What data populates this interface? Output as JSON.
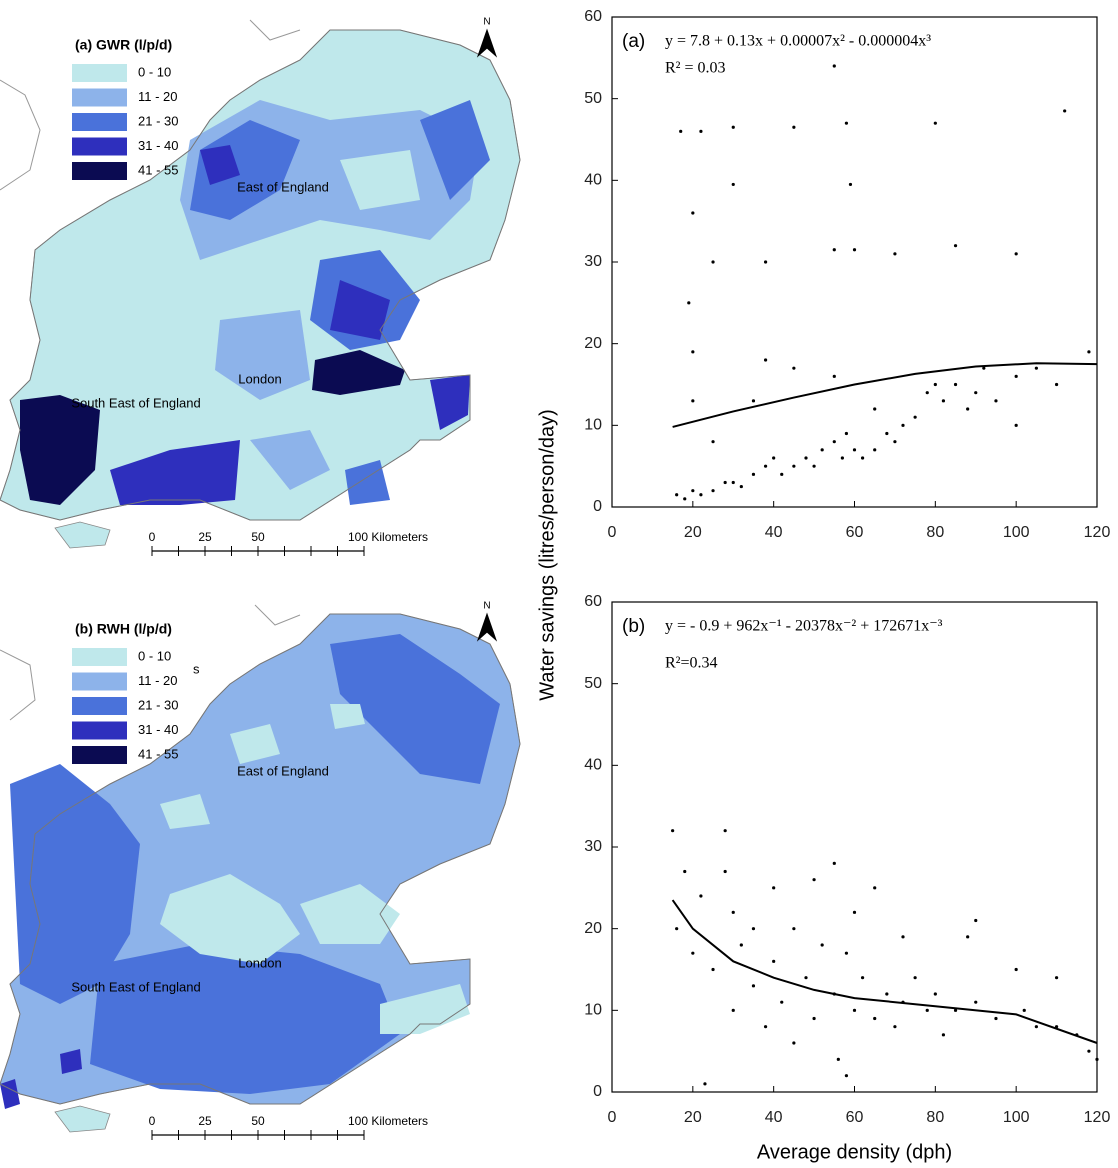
{
  "maps": [
    {
      "title": "(a) GWR (l/p/d)",
      "legend": [
        {
          "label": "0 - 10",
          "color": "#bfe8eb"
        },
        {
          "label": "11 - 20",
          "color": "#8db3ea"
        },
        {
          "label": "21 - 30",
          "color": "#4a72da"
        },
        {
          "label": "31 - 40",
          "color": "#2e2fbd"
        },
        {
          "label": "41 - 55",
          "color": "#0b0b52"
        }
      ],
      "regions": [
        "East of England",
        "London",
        "South East of England"
      ],
      "scale": [
        "0",
        "25",
        "50",
        "100 Kilometers"
      ],
      "north": "N"
    },
    {
      "title": "(b) RWH (l/p/d)",
      "legend": [
        {
          "label": "0 - 10",
          "color": "#bfe8eb"
        },
        {
          "label": "11 - 20",
          "color": "#8db3ea"
        },
        {
          "label": "21 - 30",
          "color": "#4a72da"
        },
        {
          "label": "31 - 40",
          "color": "#2e2fbd"
        },
        {
          "label": "41 - 55",
          "color": "#0b0b52"
        }
      ],
      "regions": [
        "East of England",
        "London",
        "South East of England"
      ],
      "scale": [
        "0",
        "25",
        "50",
        "100 Kilometers"
      ],
      "north": "N",
      "extra": "s"
    }
  ],
  "chart_data": [
    {
      "type": "scatter",
      "annotation": "(a)",
      "equation": "y = 7.8 + 0.13x + 0.00007x² - 0.000004x³",
      "r2": "R² = 0.03",
      "ylabel": "Water savings (litres/person/day)",
      "color": "#000000",
      "x": [
        16,
        18,
        20,
        22,
        25,
        28,
        30,
        32,
        35,
        38,
        40,
        42,
        45,
        48,
        50,
        52,
        55,
        57,
        58,
        60,
        62,
        65,
        68,
        70,
        72,
        75,
        78,
        80,
        82,
        85,
        88,
        90,
        95,
        100,
        105,
        110,
        118,
        19,
        20,
        17,
        22,
        30,
        45,
        58,
        80,
        112,
        30,
        59,
        20,
        25,
        38,
        55,
        60,
        70,
        85,
        38,
        45,
        55,
        20,
        25,
        35,
        65,
        100,
        55,
        92,
        100
      ],
      "y": [
        1.5,
        1,
        2,
        1.5,
        2,
        3,
        3,
        2.5,
        4,
        5,
        6,
        4,
        5,
        6,
        5,
        7,
        8,
        6,
        9,
        7,
        6,
        7,
        9,
        8,
        10,
        11,
        14,
        15,
        13,
        15,
        12,
        14,
        13,
        16,
        17,
        15,
        19,
        25,
        13,
        46,
        46,
        46.5,
        46.5,
        47,
        47,
        48.5,
        39.5,
        39.5,
        36,
        30,
        30,
        31.5,
        31.5,
        31,
        32,
        18,
        17,
        16,
        19,
        8,
        13,
        12,
        31,
        54,
        17,
        10
      ],
      "fit": {
        "x": [
          15,
          30,
          45,
          60,
          75,
          90,
          105,
          120
        ],
        "y": [
          9.8,
          11.7,
          13.4,
          15.0,
          16.3,
          17.2,
          17.6,
          17.5
        ]
      },
      "xlim": [
        0,
        120
      ],
      "xticks": [
        0,
        20,
        40,
        60,
        80,
        100,
        120
      ],
      "ylim": [
        0,
        60
      ],
      "yticks": [
        0,
        10,
        20,
        30,
        40,
        50,
        60
      ]
    },
    {
      "type": "scatter",
      "annotation": "(b)",
      "equation": "y = - 0.9 + 962x⁻¹ - 20378x⁻² + 172671x⁻³",
      "r2": "R²=0.34",
      "xlabel": "Average density (dph)",
      "color": "#000000",
      "x": [
        15,
        16,
        18,
        20,
        22,
        25,
        28,
        30,
        30,
        32,
        35,
        38,
        40,
        42,
        45,
        45,
        48,
        50,
        52,
        55,
        56,
        58,
        58,
        60,
        62,
        65,
        68,
        70,
        72,
        75,
        78,
        80,
        82,
        85,
        88,
        90,
        95,
        100,
        102,
        105,
        110,
        115,
        118,
        120,
        23,
        60,
        65,
        72,
        50,
        35,
        28,
        40,
        55,
        90,
        110
      ],
      "y": [
        32,
        20,
        27,
        17,
        24,
        15,
        27,
        22,
        10,
        18,
        13,
        8,
        16,
        11,
        20,
        6,
        14,
        9,
        18,
        12,
        4,
        2,
        17,
        10,
        14,
        9,
        12,
        8,
        11,
        14,
        10,
        12,
        7,
        10,
        19,
        11,
        9,
        15,
        10,
        8,
        14,
        7,
        5,
        4,
        1,
        22,
        25,
        19,
        26,
        20,
        32,
        25,
        28,
        21,
        8
      ],
      "fit": {
        "x": [
          15,
          20,
          30,
          40,
          50,
          60,
          80,
          100,
          120
        ],
        "y": [
          23.5,
          20,
          16,
          14,
          12.5,
          11.5,
          10.5,
          9.5,
          6
        ]
      },
      "xlim": [
        0,
        120
      ],
      "xticks": [
        0,
        20,
        40,
        60,
        80,
        100,
        120
      ],
      "ylim": [
        0,
        60
      ],
      "yticks": [
        0,
        10,
        20,
        30,
        40,
        50,
        60
      ]
    }
  ]
}
